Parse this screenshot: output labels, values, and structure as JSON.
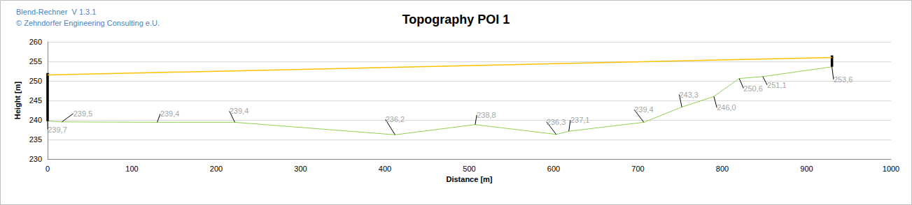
{
  "chart_data": {
    "type": "line",
    "title": "Topography POI 1",
    "annotations": [
      "Blend-Rechner  V 1.3.1",
      "© Zehndorfer Engineering Consulting e.U."
    ],
    "x_label": "Distance [m]",
    "y_label": "Height [m]",
    "xlim": [
      0,
      1000
    ],
    "xticks": [
      0,
      100,
      200,
      300,
      400,
      500,
      600,
      700,
      800,
      900,
      1000
    ],
    "ylim": [
      230,
      260
    ],
    "yticks": [
      230,
      235,
      240,
      245,
      250,
      255,
      260
    ],
    "grid": true,
    "series": [
      {
        "type": "line",
        "color": "#92d050",
        "line_style": "solid",
        "data_labels": true,
        "x": [
          0,
          17,
          130,
          222,
          412,
          507,
          603,
          618,
          707,
          752,
          790,
          820,
          848,
          930
        ],
        "values": [
          239.7,
          239.5,
          239.4,
          239.4,
          236.2,
          238.8,
          236.3,
          237.1,
          239.4,
          243.3,
          246.0,
          250.6,
          251.1,
          253.6
        ],
        "value_labels": [
          "239,7",
          "239,5",
          "239,4",
          "239,4",
          "236,2",
          "238,8",
          "236,3",
          "237,1",
          "239,4",
          "243,3",
          "246,0",
          "250,6",
          "251,1",
          "253,6"
        ]
      },
      {
        "type": "line",
        "color": "#ffc000",
        "line_style": "solid",
        "marker": "arrow",
        "x": [
          0,
          930
        ],
        "values": [
          251.5,
          256.0
        ]
      },
      {
        "type": "line",
        "color": "#000000",
        "line_style": "thick",
        "x": [
          0,
          0
        ],
        "values": [
          239.7,
          252.0
        ]
      },
      {
        "type": "line",
        "color": "#000000",
        "line_style": "thick",
        "x": [
          930,
          930
        ],
        "values": [
          253.6,
          256.5
        ]
      }
    ]
  }
}
